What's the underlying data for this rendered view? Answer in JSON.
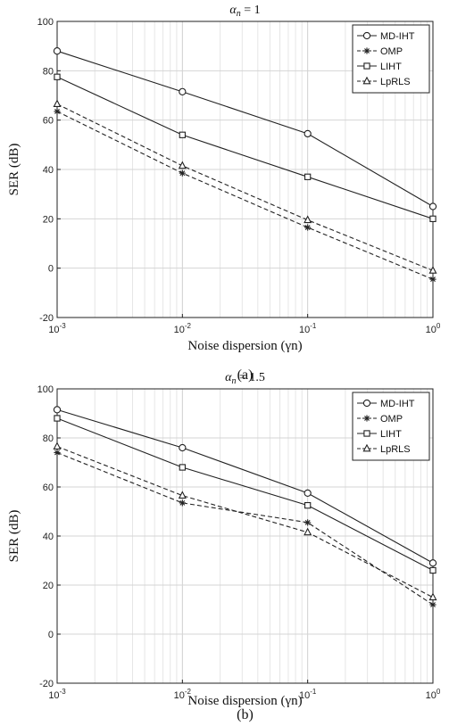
{
  "chart_data": [
    {
      "type": "line",
      "title_prefix": "α",
      "title_sub": "n",
      "title_value": " = 1",
      "xlabel": "Noise dispersion (γn)",
      "ylabel": "SER (dB)",
      "caption": "(a)",
      "x_scale": "log",
      "xlim": [
        0.001,
        1
      ],
      "ylim": [
        -20,
        100
      ],
      "x_ticks": [
        0.001,
        0.01,
        0.1,
        1
      ],
      "x_tick_labels": [
        {
          "base": "10",
          "exp": "-3"
        },
        {
          "base": "10",
          "exp": "-2"
        },
        {
          "base": "10",
          "exp": "-1"
        },
        {
          "base": "10",
          "exp": "0"
        }
      ],
      "y_ticks": [
        -20,
        0,
        20,
        40,
        60,
        80,
        100
      ],
      "y_tick_labels": [
        "-20",
        "0",
        "20",
        "40",
        "60",
        "80",
        "100"
      ],
      "grid": true,
      "legend_position": "top-right",
      "x": [
        0.001,
        0.01,
        0.1,
        1
      ],
      "series": [
        {
          "name": "MD-IHT",
          "values": [
            88,
            71.5,
            54.5,
            25
          ],
          "style": "solid",
          "marker": "circle"
        },
        {
          "name": "OMP",
          "values": [
            63.5,
            38.5,
            16.5,
            -4.5
          ],
          "style": "dashed",
          "marker": "star"
        },
        {
          "name": "LIHT",
          "values": [
            77.5,
            54,
            37,
            20
          ],
          "style": "solid",
          "marker": "square"
        },
        {
          "name": "LpRLS",
          "values": [
            66.5,
            41.5,
            19.5,
            -1
          ],
          "style": "dashed",
          "marker": "triangle"
        }
      ]
    },
    {
      "type": "line",
      "title_prefix": "α",
      "title_sub": "n",
      "title_value": " = 1.5",
      "xlabel": "Noise dispersion (γn)",
      "ylabel": "SER (dB)",
      "caption": "(b)",
      "x_scale": "log",
      "xlim": [
        0.001,
        1
      ],
      "ylim": [
        -20,
        100
      ],
      "x_ticks": [
        0.001,
        0.01,
        0.1,
        1
      ],
      "x_tick_labels": [
        {
          "base": "10",
          "exp": "-3"
        },
        {
          "base": "10",
          "exp": "-2"
        },
        {
          "base": "10",
          "exp": "-1"
        },
        {
          "base": "10",
          "exp": "0"
        }
      ],
      "y_ticks": [
        -20,
        0,
        20,
        40,
        60,
        80,
        100
      ],
      "y_tick_labels": [
        "-20",
        "0",
        "20",
        "40",
        "60",
        "80",
        "100"
      ],
      "grid": true,
      "legend_position": "top-right",
      "x": [
        0.001,
        0.01,
        0.1,
        1
      ],
      "series": [
        {
          "name": "MD-IHT",
          "values": [
            91.5,
            76,
            57.5,
            29
          ],
          "style": "solid",
          "marker": "circle"
        },
        {
          "name": "OMP",
          "values": [
            74,
            53.5,
            45.5,
            12
          ],
          "style": "dashed",
          "marker": "star"
        },
        {
          "name": "LIHT",
          "values": [
            88,
            68,
            52.5,
            26
          ],
          "style": "solid",
          "marker": "square"
        },
        {
          "name": "LpRLS",
          "values": [
            76.5,
            56.5,
            41.5,
            15
          ],
          "style": "dashed",
          "marker": "triangle"
        }
      ]
    }
  ]
}
